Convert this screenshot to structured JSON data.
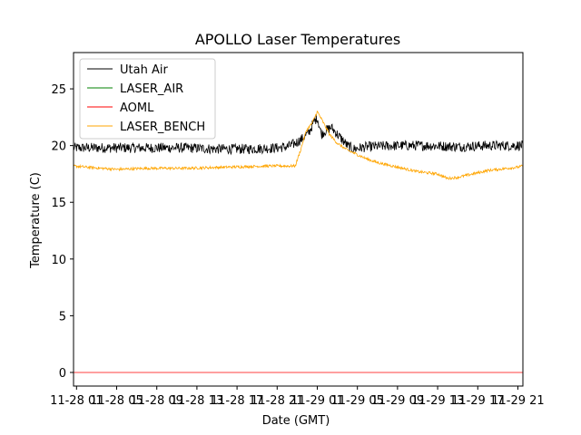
{
  "chart_data": {
    "type": "line",
    "title": "APOLLO Laser Temperatures",
    "xlabel": "Date (GMT)",
    "ylabel": "Temperature (C)",
    "xlim": [
      0.7,
      45.5
    ],
    "ylim": [
      -1.2,
      28.2
    ],
    "x_unit": "hours since 11-28 00:00 GMT",
    "xticks": [
      {
        "x": 1,
        "label": "11-28 01"
      },
      {
        "x": 5,
        "label": "11-28 05"
      },
      {
        "x": 9,
        "label": "11-28 09"
      },
      {
        "x": 13,
        "label": "11-28 13"
      },
      {
        "x": 17,
        "label": "11-28 17"
      },
      {
        "x": 21,
        "label": "11-28 21"
      },
      {
        "x": 25,
        "label": "11-29 01"
      },
      {
        "x": 29,
        "label": "11-29 05"
      },
      {
        "x": 33,
        "label": "11-29 09"
      },
      {
        "x": 37,
        "label": "11-29 13"
      },
      {
        "x": 41,
        "label": "11-29 17"
      },
      {
        "x": 45,
        "label": "11-29 21"
      }
    ],
    "yticks": [
      {
        "y": 0,
        "label": "0"
      },
      {
        "y": 5,
        "label": "5"
      },
      {
        "y": 10,
        "label": "10"
      },
      {
        "y": 15,
        "label": "15"
      },
      {
        "y": 20,
        "label": "20"
      },
      {
        "y": 25,
        "label": "25"
      }
    ],
    "legend_position": "top-left",
    "series": [
      {
        "name": "Utah Air",
        "color": "#000000",
        "noise": 0.45,
        "x": [
          0.7,
          4,
          8,
          12,
          15,
          18,
          21,
          22,
          22.8,
          23.5,
          24.2,
          24.6,
          25,
          25.4,
          25.8,
          26.4,
          27.2,
          28,
          28.6,
          30,
          33,
          36,
          39,
          42,
          45.5
        ],
        "y": [
          19.8,
          19.8,
          19.8,
          19.8,
          19.7,
          19.7,
          19.8,
          19.9,
          20.2,
          20.6,
          21.2,
          22.0,
          22.5,
          21.0,
          21.3,
          21.6,
          20.8,
          20.0,
          19.7,
          19.9,
          20.0,
          20.0,
          19.9,
          20.0,
          20.0
        ]
      },
      {
        "name": "LASER_AIR",
        "color": "#008000",
        "x": [],
        "y": []
      },
      {
        "name": "AOML",
        "color": "#ff0000",
        "x": [
          0.7,
          45.5
        ],
        "y": [
          0,
          0
        ]
      },
      {
        "name": "LASER_BENCH",
        "color": "#ffa500",
        "noise": 0.12,
        "x": [
          0.7,
          2,
          5,
          8,
          12,
          16,
          20,
          22.8,
          23.3,
          23.9,
          24.5,
          25,
          25.5,
          26.2,
          27,
          28,
          29,
          30,
          31,
          32,
          33,
          34,
          35,
          36,
          37,
          38,
          39,
          40,
          41,
          42,
          43,
          44,
          45,
          45.5
        ],
        "y": [
          18.2,
          18.1,
          17.9,
          18.0,
          18.0,
          18.1,
          18.2,
          18.2,
          19.5,
          21.3,
          22.0,
          23.0,
          22.2,
          21.0,
          20.2,
          19.6,
          19.2,
          18.8,
          18.5,
          18.3,
          18.1,
          17.9,
          17.7,
          17.6,
          17.5,
          17.1,
          17.2,
          17.4,
          17.6,
          17.8,
          17.9,
          18.0,
          18.1,
          18.2
        ]
      }
    ]
  }
}
